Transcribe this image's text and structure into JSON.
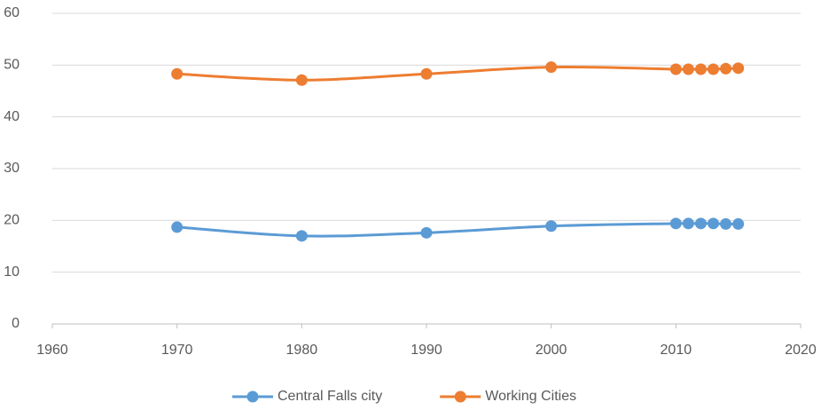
{
  "chart_data": {
    "type": "line",
    "smooth": true,
    "grid": true,
    "legend": "bottom",
    "x": [
      1970,
      1980,
      1990,
      2000,
      2010,
      2011,
      2012,
      2013,
      2014,
      2015
    ],
    "series": [
      {
        "name": "Central Falls city",
        "color": "#5b9bd5",
        "values": [
          18.7,
          17.0,
          17.6,
          18.9,
          19.4,
          19.4,
          19.4,
          19.4,
          19.3,
          19.3
        ]
      },
      {
        "name": "Working Cities",
        "color": "#ed7d31",
        "values": [
          48.3,
          47.1,
          48.3,
          49.6,
          49.2,
          49.2,
          49.2,
          49.2,
          49.3,
          49.4
        ]
      }
    ],
    "xlim": [
      1960,
      2020
    ],
    "xticks": [
      1960,
      1970,
      1980,
      1990,
      2000,
      2010,
      2020
    ],
    "ylim": [
      0,
      60
    ],
    "yticks": [
      0,
      10,
      20,
      30,
      40,
      50,
      60
    ]
  }
}
